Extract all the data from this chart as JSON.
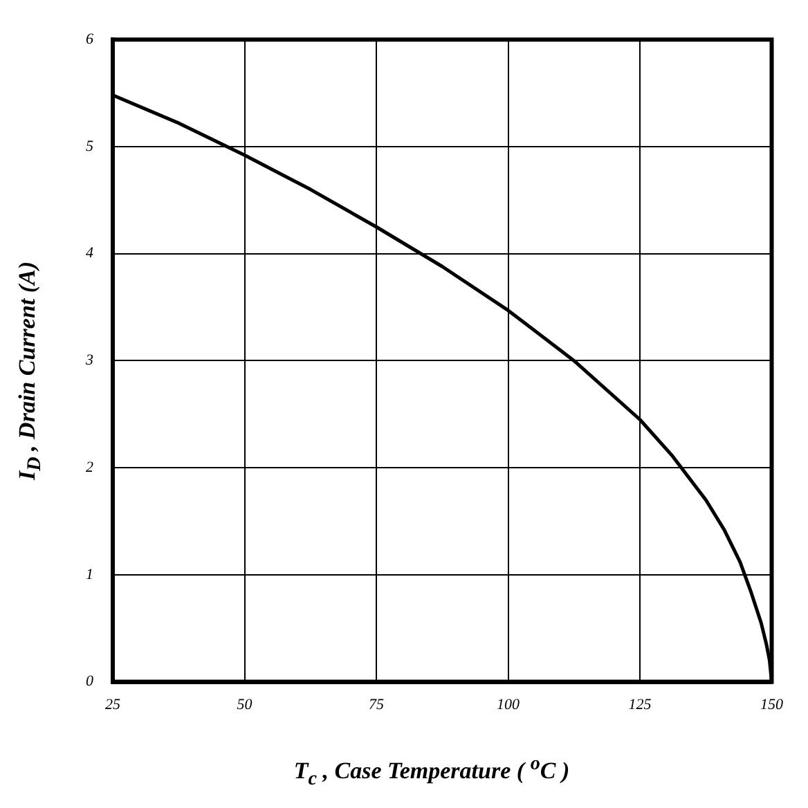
{
  "chart_data": {
    "type": "line",
    "xlabel": "T$_{c}$ , Case Temperature ( $^{o}$C )",
    "ylabel": "I$_{D}$ , Drain Current (A)",
    "x": [
      25,
      37.5,
      50,
      62.5,
      75,
      87.5,
      100,
      112.5,
      125,
      131,
      137.5,
      141,
      144,
      146,
      148,
      149,
      149.6,
      150
    ],
    "series": [
      {
        "color": "#000000",
        "values": [
          5.48,
          5.22,
          4.92,
          4.6,
          4.25,
          3.88,
          3.47,
          3.0,
          2.45,
          2.12,
          1.7,
          1.42,
          1.12,
          0.85,
          0.55,
          0.35,
          0.2,
          0
        ]
      }
    ],
    "xlim": [
      25,
      150
    ],
    "xticks": [
      25,
      50,
      75,
      100,
      125,
      150
    ],
    "ylim": [
      0,
      6
    ],
    "yticks": [
      0,
      1,
      2,
      3,
      4,
      5,
      6
    ],
    "grid": true,
    "marker": "none",
    "line_style": "solid",
    "legend": false
  }
}
